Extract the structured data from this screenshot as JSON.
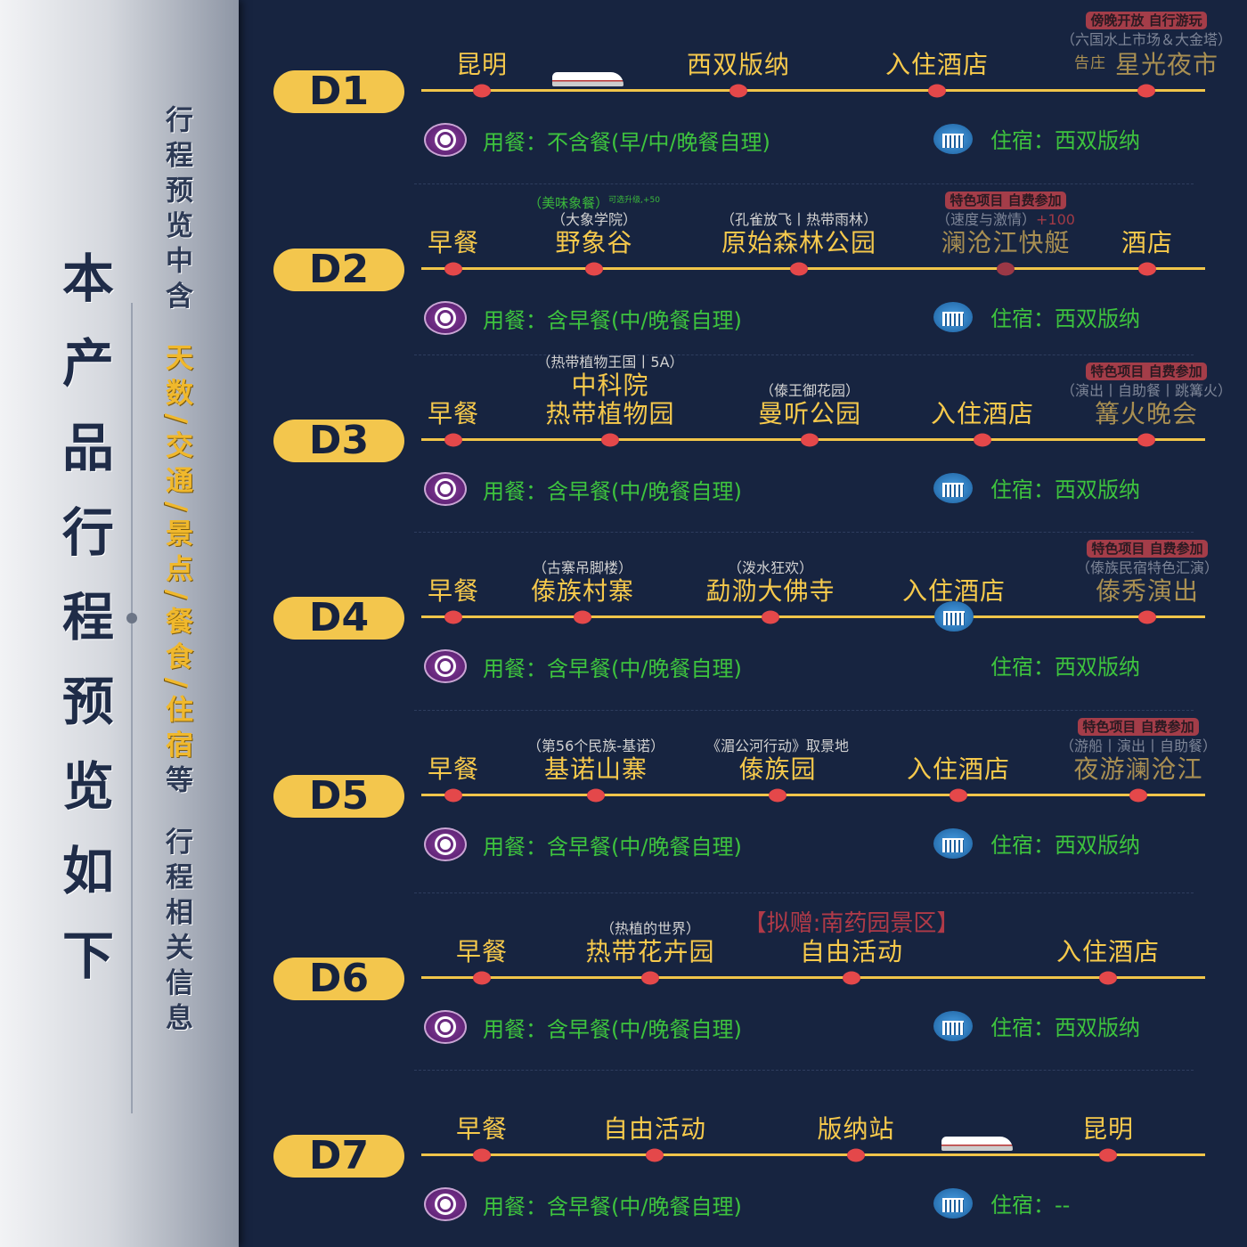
{
  "sidebar": {
    "title": "本产品行程预览如下",
    "subtitle_a": "行程预览中含",
    "subtitle_highlight": "天数/交通/景点/餐食/住宿",
    "subtitle_b": "等",
    "subtitle_c": "行程相关信息"
  },
  "colors": {
    "background": "#172440",
    "line": "#f1c54a",
    "dot": "#e4484a",
    "label": "#f6c94c",
    "meal_text": "#3ec43e",
    "badge": "#a43d49"
  },
  "days": [
    {
      "label": "D1",
      "stops": [
        {
          "label": "昆明"
        },
        {
          "label": "西双版纳"
        },
        {
          "label": "入住酒店"
        },
        {
          "label": "星光夜市",
          "prefix": "告庄",
          "sub": "（六国水上市场＆大金塔）",
          "badge": "傍晚开放 自行游玩",
          "optional": true
        }
      ],
      "transport_icon": "train-icon",
      "meal": "用餐：不含餐(早/中/晚餐自理)",
      "lodging": "住宿：西双版纳"
    },
    {
      "label": "D2",
      "stops": [
        {
          "label": "早餐"
        },
        {
          "label": "野象谷",
          "sub": "（大象学院）",
          "green_note": "（美味象餐）",
          "green_sup": "可选升级,+50"
        },
        {
          "label": "原始森林公园",
          "sub": "（孔雀放飞丨热带雨林）"
        },
        {
          "label": "澜沧江快艇",
          "sub": "（速度与激情）",
          "sub_plus": "+100",
          "badge": "特色项目 自费参加",
          "optional": true
        },
        {
          "label": "酒店"
        }
      ],
      "meal": "用餐：含早餐(中/晚餐自理)",
      "lodging": "住宿：西双版纳"
    },
    {
      "label": "D3",
      "stops": [
        {
          "label": "早餐"
        },
        {
          "pre_label": "中科院",
          "label": "热带植物园",
          "sub": "（热带植物王国丨5A）"
        },
        {
          "label": "曼听公园",
          "sub": "（傣王御花园）"
        },
        {
          "label": "入住酒店"
        },
        {
          "label": "篝火晚会",
          "sub": "（演出丨自助餐丨跳篝火）",
          "badge": "特色项目 自费参加",
          "optional": true
        }
      ],
      "meal": "用餐：含早餐(中/晚餐自理)",
      "lodging": "住宿：西双版纳"
    },
    {
      "label": "D4",
      "stops": [
        {
          "label": "早餐"
        },
        {
          "label": "傣族村寨",
          "sub": "（古寨吊脚楼）"
        },
        {
          "label": "勐泐大佛寺",
          "sub": "（泼水狂欢）"
        },
        {
          "label": "入住酒店",
          "marker": "hotel-icon"
        },
        {
          "label": "傣秀演出",
          "sub": "（傣族民宿特色汇演）",
          "badge": "特色项目 自费参加",
          "optional": true
        }
      ],
      "meal": "用餐：含早餐(中/晚餐自理)",
      "lodging": "住宿：西双版纳",
      "no_lodging_icon": true
    },
    {
      "label": "D5",
      "stops": [
        {
          "label": "早餐"
        },
        {
          "label": "基诺山寨",
          "sub": "（第56个民族-基诺）"
        },
        {
          "label": "傣族园",
          "sub": "《湄公河行动》取景地"
        },
        {
          "label": "入住酒店"
        },
        {
          "label": "夜游澜沧江",
          "sub": "（游船丨演出丨自助餐）",
          "badge": "特色项目 自费参加",
          "optional": true
        }
      ],
      "meal": "用餐：含早餐(中/晚餐自理)",
      "lodging": "住宿：西双版纳"
    },
    {
      "label": "D6",
      "stops": [
        {
          "label": "早餐"
        },
        {
          "label": "热带花卉园",
          "sub": "（热植的世界）"
        },
        {
          "label": "自由活动",
          "red_note": "【拟赠:南药园景区】"
        },
        {
          "label": "入住酒店"
        }
      ],
      "meal": "用餐：含早餐(中/晚餐自理)",
      "lodging": "住宿：西双版纳"
    },
    {
      "label": "D7",
      "stops": [
        {
          "label": "早餐"
        },
        {
          "label": "自由活动"
        },
        {
          "label": "版纳站"
        },
        {
          "label": "昆明"
        }
      ],
      "transport_icon": "train-icon",
      "meal": "用餐：含早餐(中/晚餐自理)",
      "lodging": "住宿：--"
    }
  ]
}
